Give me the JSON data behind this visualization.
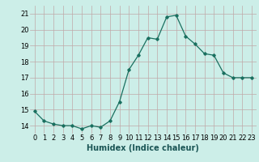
{
  "x": [
    0,
    1,
    2,
    3,
    4,
    5,
    6,
    7,
    8,
    9,
    10,
    11,
    12,
    13,
    14,
    15,
    16,
    17,
    18,
    19,
    20,
    21,
    22,
    23
  ],
  "y": [
    14.9,
    14.3,
    14.1,
    14.0,
    14.0,
    13.8,
    14.0,
    13.9,
    14.3,
    15.5,
    17.5,
    18.4,
    19.5,
    19.4,
    20.8,
    20.9,
    19.6,
    19.1,
    18.5,
    18.4,
    17.3,
    17.0,
    17.0,
    17.0
  ],
  "xlabel": "Humidex (Indice chaleur)",
  "xlim": [
    -0.5,
    23.5
  ],
  "ylim": [
    13.5,
    21.5
  ],
  "yticks": [
    14,
    15,
    16,
    17,
    18,
    19,
    20,
    21
  ],
  "xticks": [
    0,
    1,
    2,
    3,
    4,
    5,
    6,
    7,
    8,
    9,
    10,
    11,
    12,
    13,
    14,
    15,
    16,
    17,
    18,
    19,
    20,
    21,
    22,
    23
  ],
  "line_color": "#1a7060",
  "marker": "D",
  "marker_size": 1.8,
  "bg_color": "#cceee8",
  "grid_color": "#c0a8a8",
  "xlabel_fontsize": 7,
  "tick_fontsize": 6,
  "line_width": 0.9
}
